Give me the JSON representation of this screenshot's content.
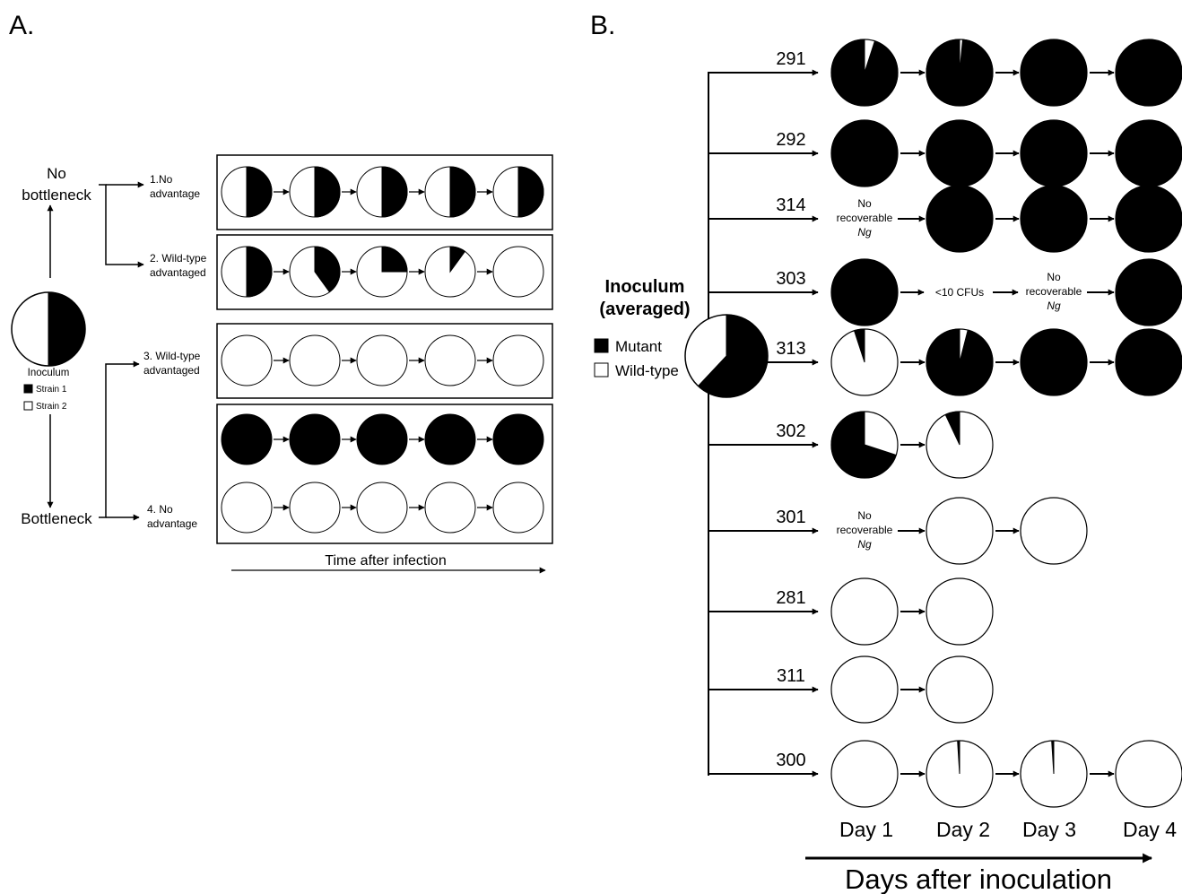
{
  "panel_a": {
    "label": "A.",
    "top_branch_label_line1": "No",
    "top_branch_label_line2": "bottleneck",
    "bottom_branch_label": "Bottleneck",
    "inoculum_caption": "Inoculum",
    "legend": [
      {
        "label": "Strain 1",
        "color": "#000000"
      },
      {
        "label": "Strain 2",
        "color": "#ffffff"
      }
    ],
    "inoculum_fraction_strain1": 0.5,
    "time_axis_label": "Time after infection",
    "scenarios": [
      {
        "label_lines": [
          "1.No",
          "advantage"
        ],
        "rows": [
          [
            0.5,
            0.5,
            0.5,
            0.5,
            0.5
          ]
        ]
      },
      {
        "label_lines": [
          "2. Wild-type",
          "advantaged"
        ],
        "rows": [
          [
            0.5,
            0.4,
            0.25,
            0.1,
            0
          ]
        ]
      },
      {
        "label_lines": [
          "3. Wild-type",
          "advantaged"
        ],
        "rows": [
          [
            0,
            0,
            0,
            0,
            0
          ]
        ]
      },
      {
        "label_lines": [
          "4. No",
          "advantage"
        ],
        "rows": [
          [
            1,
            1,
            1,
            1,
            1
          ],
          [
            0,
            0,
            0,
            0,
            0
          ]
        ]
      }
    ]
  },
  "panel_b": {
    "label": "B.",
    "inoculum_title_line1": "Inoculum",
    "inoculum_title_line2": "(averaged)",
    "legend": [
      {
        "label": "Mutant",
        "color": "#000000"
      },
      {
        "label": "Wild-type",
        "color": "#ffffff"
      }
    ],
    "inoculum_fraction_mutant": 0.62,
    "days": [
      "Day 1",
      "Day 2",
      "Day 3",
      "Day 4"
    ],
    "x_axis_label": "Days after inoculation",
    "subjects": [
      {
        "id": "291",
        "days": [
          {
            "type": "pie",
            "mutant_fraction": 0.95
          },
          {
            "type": "pie",
            "mutant_fraction": 0.985
          },
          {
            "type": "pie",
            "mutant_fraction": 1
          },
          {
            "type": "pie",
            "mutant_fraction": 1
          }
        ]
      },
      {
        "id": "292",
        "days": [
          {
            "type": "pie",
            "mutant_fraction": 1
          },
          {
            "type": "pie",
            "mutant_fraction": 1
          },
          {
            "type": "pie",
            "mutant_fraction": 1
          },
          {
            "type": "pie",
            "mutant_fraction": 1
          }
        ]
      },
      {
        "id": "314",
        "days": [
          {
            "type": "text",
            "lines": [
              "No",
              "recoverable",
              "Ng"
            ]
          },
          {
            "type": "pie",
            "mutant_fraction": 1
          },
          {
            "type": "pie",
            "mutant_fraction": 1
          },
          {
            "type": "pie",
            "mutant_fraction": 1
          }
        ]
      },
      {
        "id": "303",
        "days": [
          {
            "type": "pie",
            "mutant_fraction": 1
          },
          {
            "type": "text",
            "lines": [
              "<10 CFUs"
            ]
          },
          {
            "type": "text",
            "lines": [
              "No",
              "recoverable",
              "Ng"
            ]
          },
          {
            "type": "pie",
            "mutant_fraction": 1
          }
        ]
      },
      {
        "id": "313",
        "days": [
          {
            "type": "pie",
            "mutant_fraction": 0.05
          },
          {
            "type": "pie",
            "mutant_fraction": 0.96
          },
          {
            "type": "pie",
            "mutant_fraction": 1
          },
          {
            "type": "pie",
            "mutant_fraction": 1
          }
        ]
      },
      {
        "id": "302",
        "days": [
          {
            "type": "pie",
            "mutant_fraction": 0.7
          },
          {
            "type": "pie",
            "mutant_fraction": 0.07
          }
        ]
      },
      {
        "id": "301",
        "days": [
          {
            "type": "text",
            "lines": [
              "No",
              "recoverable",
              "Ng"
            ]
          },
          {
            "type": "pie",
            "mutant_fraction": 0
          },
          {
            "type": "pie",
            "mutant_fraction": 0
          }
        ]
      },
      {
        "id": "281",
        "days": [
          {
            "type": "pie",
            "mutant_fraction": 0
          },
          {
            "type": "pie",
            "mutant_fraction": 0
          }
        ]
      },
      {
        "id": "311",
        "days": [
          {
            "type": "pie",
            "mutant_fraction": 0
          },
          {
            "type": "pie",
            "mutant_fraction": 0
          }
        ]
      },
      {
        "id": "300",
        "days": [
          {
            "type": "pie",
            "mutant_fraction": 0
          },
          {
            "type": "pie",
            "mutant_fraction": 0.01
          },
          {
            "type": "pie",
            "mutant_fraction": 0.01
          },
          {
            "type": "pie",
            "mutant_fraction": 0
          }
        ]
      }
    ]
  }
}
